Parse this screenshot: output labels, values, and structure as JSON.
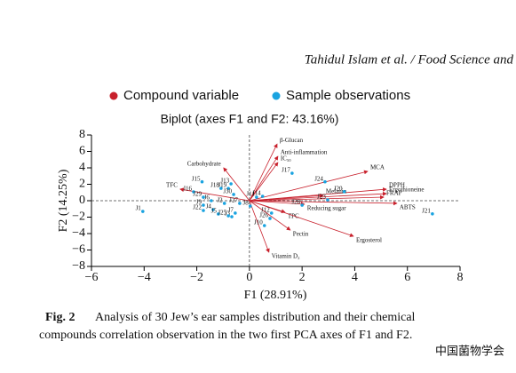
{
  "header": {
    "text": "Tahidul Islam et al. / Food Science and"
  },
  "chart_data": {
    "type": "biplot",
    "title": "Biplot (axes F1 and F2: 43.16%)",
    "x_label": "F1 (28.91%)",
    "y_label": "F2 (14.25%)",
    "xlim": [
      -6,
      8
    ],
    "ylim": [
      -8,
      8
    ],
    "xticks": [
      {
        "value": -6,
        "label": "−6"
      },
      {
        "value": -4,
        "label": "−4"
      },
      {
        "value": -2,
        "label": "−2"
      },
      0,
      2,
      4,
      6,
      8
    ],
    "yticks": [
      {
        "value": -8,
        "label": "−8"
      },
      {
        "value": -6,
        "label": "−6"
      },
      {
        "value": -4,
        "label": "−4"
      },
      {
        "value": -2,
        "label": "−2"
      },
      0,
      2,
      4,
      6,
      8
    ],
    "series": [
      {
        "name": "Compound variable",
        "color": "#c8202c",
        "kind": "vector",
        "labels": [
          "β-Glucan",
          "Anti-inflammation",
          "IC₅₀",
          "Carbohydrate",
          "TFC",
          "MCA",
          "DPPH",
          "Ergothioneine",
          "FRAP",
          "ABTS",
          "Melanin",
          "Reducing sugar",
          "TPC",
          "Pectin",
          "Ergosterol",
          "Vitamin D₂"
        ],
        "x": [
          1.05,
          1.08,
          1.08,
          -0.98,
          -2.63,
          4.49,
          5.2,
          5.2,
          5.1,
          5.6,
          2.8,
          2.09,
          1.35,
          1.55,
          3.95,
          0.74
        ],
        "values": [
          6.9,
          5.4,
          4.65,
          4.0,
          1.4,
          3.57,
          1.4,
          0.86,
          0.43,
          -0.32,
          0.65,
          -0.43,
          -1.4,
          -3.57,
          -4.32,
          -6.27
        ]
      },
      {
        "name": "Sample observations",
        "color": "#1aa3e0",
        "kind": "point",
        "labels": [
          "J1",
          "J2",
          "J3",
          "J4",
          "J5",
          "J6",
          "J7",
          "J8",
          "J9",
          "J10",
          "J11",
          "J12",
          "J13",
          "J14",
          "J15",
          "J16",
          "J17",
          "J18",
          "J19",
          "J20",
          "J21",
          "J22",
          "J23",
          "J24",
          "J25",
          "J26",
          "J27",
          "J28",
          "J29",
          "J30"
        ],
        "x": [
          -4.05,
          -0.95,
          -0.67,
          -1.38,
          -1.18,
          -1.45,
          -0.54,
          0.03,
          -1.75,
          0.57,
          0.27,
          0.84,
          -0.7,
          0.5,
          -1.8,
          -2.12,
          1.62,
          -1.08,
          -0.8,
          3.6,
          6.95,
          -1.75,
          2.97,
          2.87,
          -0.8,
          0.78,
          -0.37,
          2.0,
          -1.75,
          -0.6
        ],
        "values": [
          -1.3,
          -0.32,
          -1.95,
          -1.08,
          -1.62,
          0,
          -1.51,
          -0.65,
          -0.54,
          -3.03,
          0.43,
          -1.51,
          2.05,
          0.54,
          2.3,
          1.08,
          3.35,
          1.5,
          1.5,
          1.1,
          -1.6,
          -1.19,
          0.1,
          2.3,
          -1.84,
          -2.16,
          -0.32,
          -0.54,
          0.43,
          0.76
        ]
      }
    ]
  },
  "caption": {
    "label": "Fig. 2",
    "lines": [
      "Analysis of 30 Jew’s ear samples distribution and their chemical",
      "compounds correlation observation in the two first PCA axes of F1 and F2."
    ]
  },
  "watermark": "中国菌物学会"
}
